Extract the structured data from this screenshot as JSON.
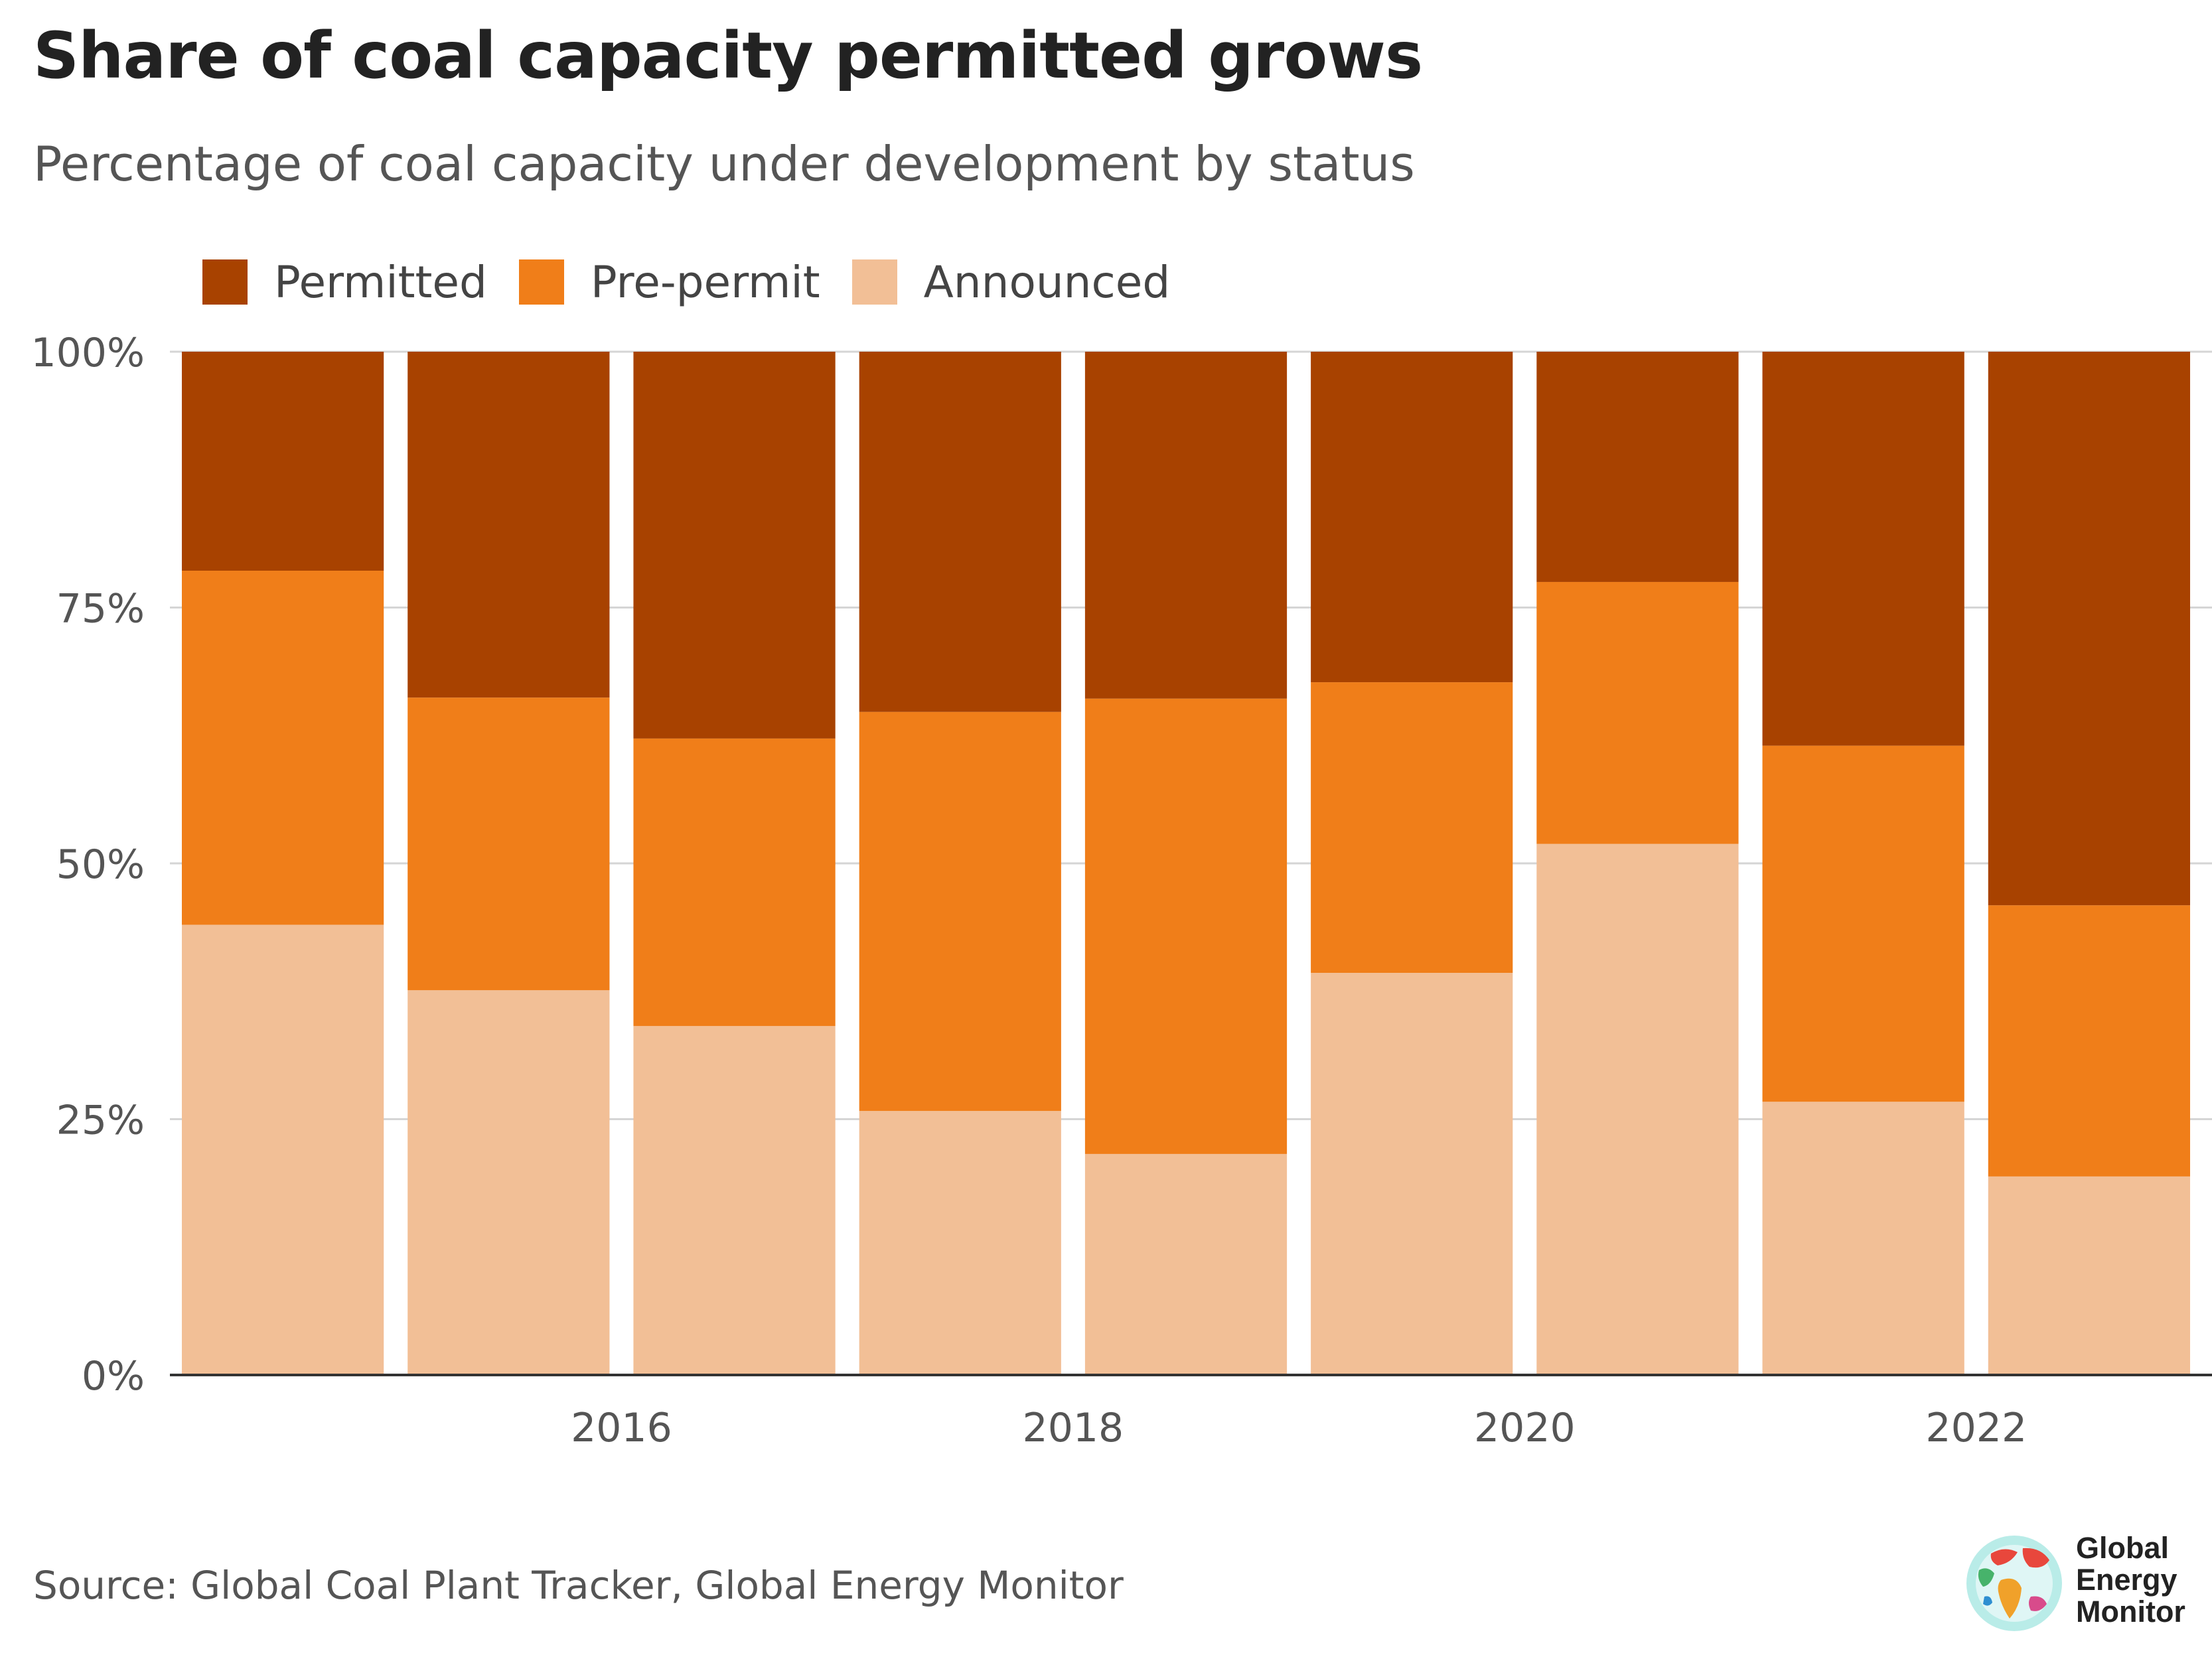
{
  "header": {
    "title": "Share of coal capacity permitted grows",
    "subtitle": "Percentage of coal capacity under development by status"
  },
  "footer": {
    "source": "Source: Global Coal Plant Tracker, Global Energy Monitor"
  },
  "logo": {
    "line1": "Global",
    "line2": "Energy",
    "line3": "Monitor"
  },
  "colors": {
    "permitted": "#a84200",
    "prepermit": "#f07e19",
    "announced": "#f2bf96",
    "grid": "#d5d5d5",
    "axis": "#333333"
  },
  "chart_data": {
    "type": "bar",
    "stacked": true,
    "legend_position": "top-left",
    "grid": true,
    "x": [
      2015,
      2016,
      2017,
      2018,
      2019,
      2020,
      2021,
      2022,
      2023
    ],
    "x_tick_labels": [
      {
        "x": 2016,
        "label": "2016"
      },
      {
        "x": 2018,
        "label": "2018"
      },
      {
        "x": 2020,
        "label": "2020"
      },
      {
        "x": 2022,
        "label": "2022"
      }
    ],
    "ylim": [
      0,
      100
    ],
    "y_ticks": [
      {
        "value": 0,
        "label": "0%"
      },
      {
        "value": 25,
        "label": "25%"
      },
      {
        "value": 50,
        "label": "50%"
      },
      {
        "value": 75,
        "label": "75%"
      },
      {
        "value": 100,
        "label": "100%"
      }
    ],
    "series": [
      {
        "name": "Announced",
        "key": "announced",
        "values": [
          44,
          37.6,
          34.1,
          25.8,
          21.6,
          39.3,
          51.9,
          26.7,
          19.4
        ]
      },
      {
        "name": "Pre-permit",
        "key": "prepermit",
        "values": [
          34.6,
          28.6,
          28.1,
          39.0,
          44.5,
          28.4,
          25.6,
          34.8,
          26.5
        ]
      },
      {
        "name": "Permitted",
        "key": "permitted",
        "values": [
          21.4,
          33.8,
          37.8,
          35.2,
          33.9,
          32.3,
          22.5,
          38.5,
          54.1
        ]
      }
    ],
    "legend_order": [
      "Permitted",
      "Pre-permit",
      "Announced"
    ]
  }
}
